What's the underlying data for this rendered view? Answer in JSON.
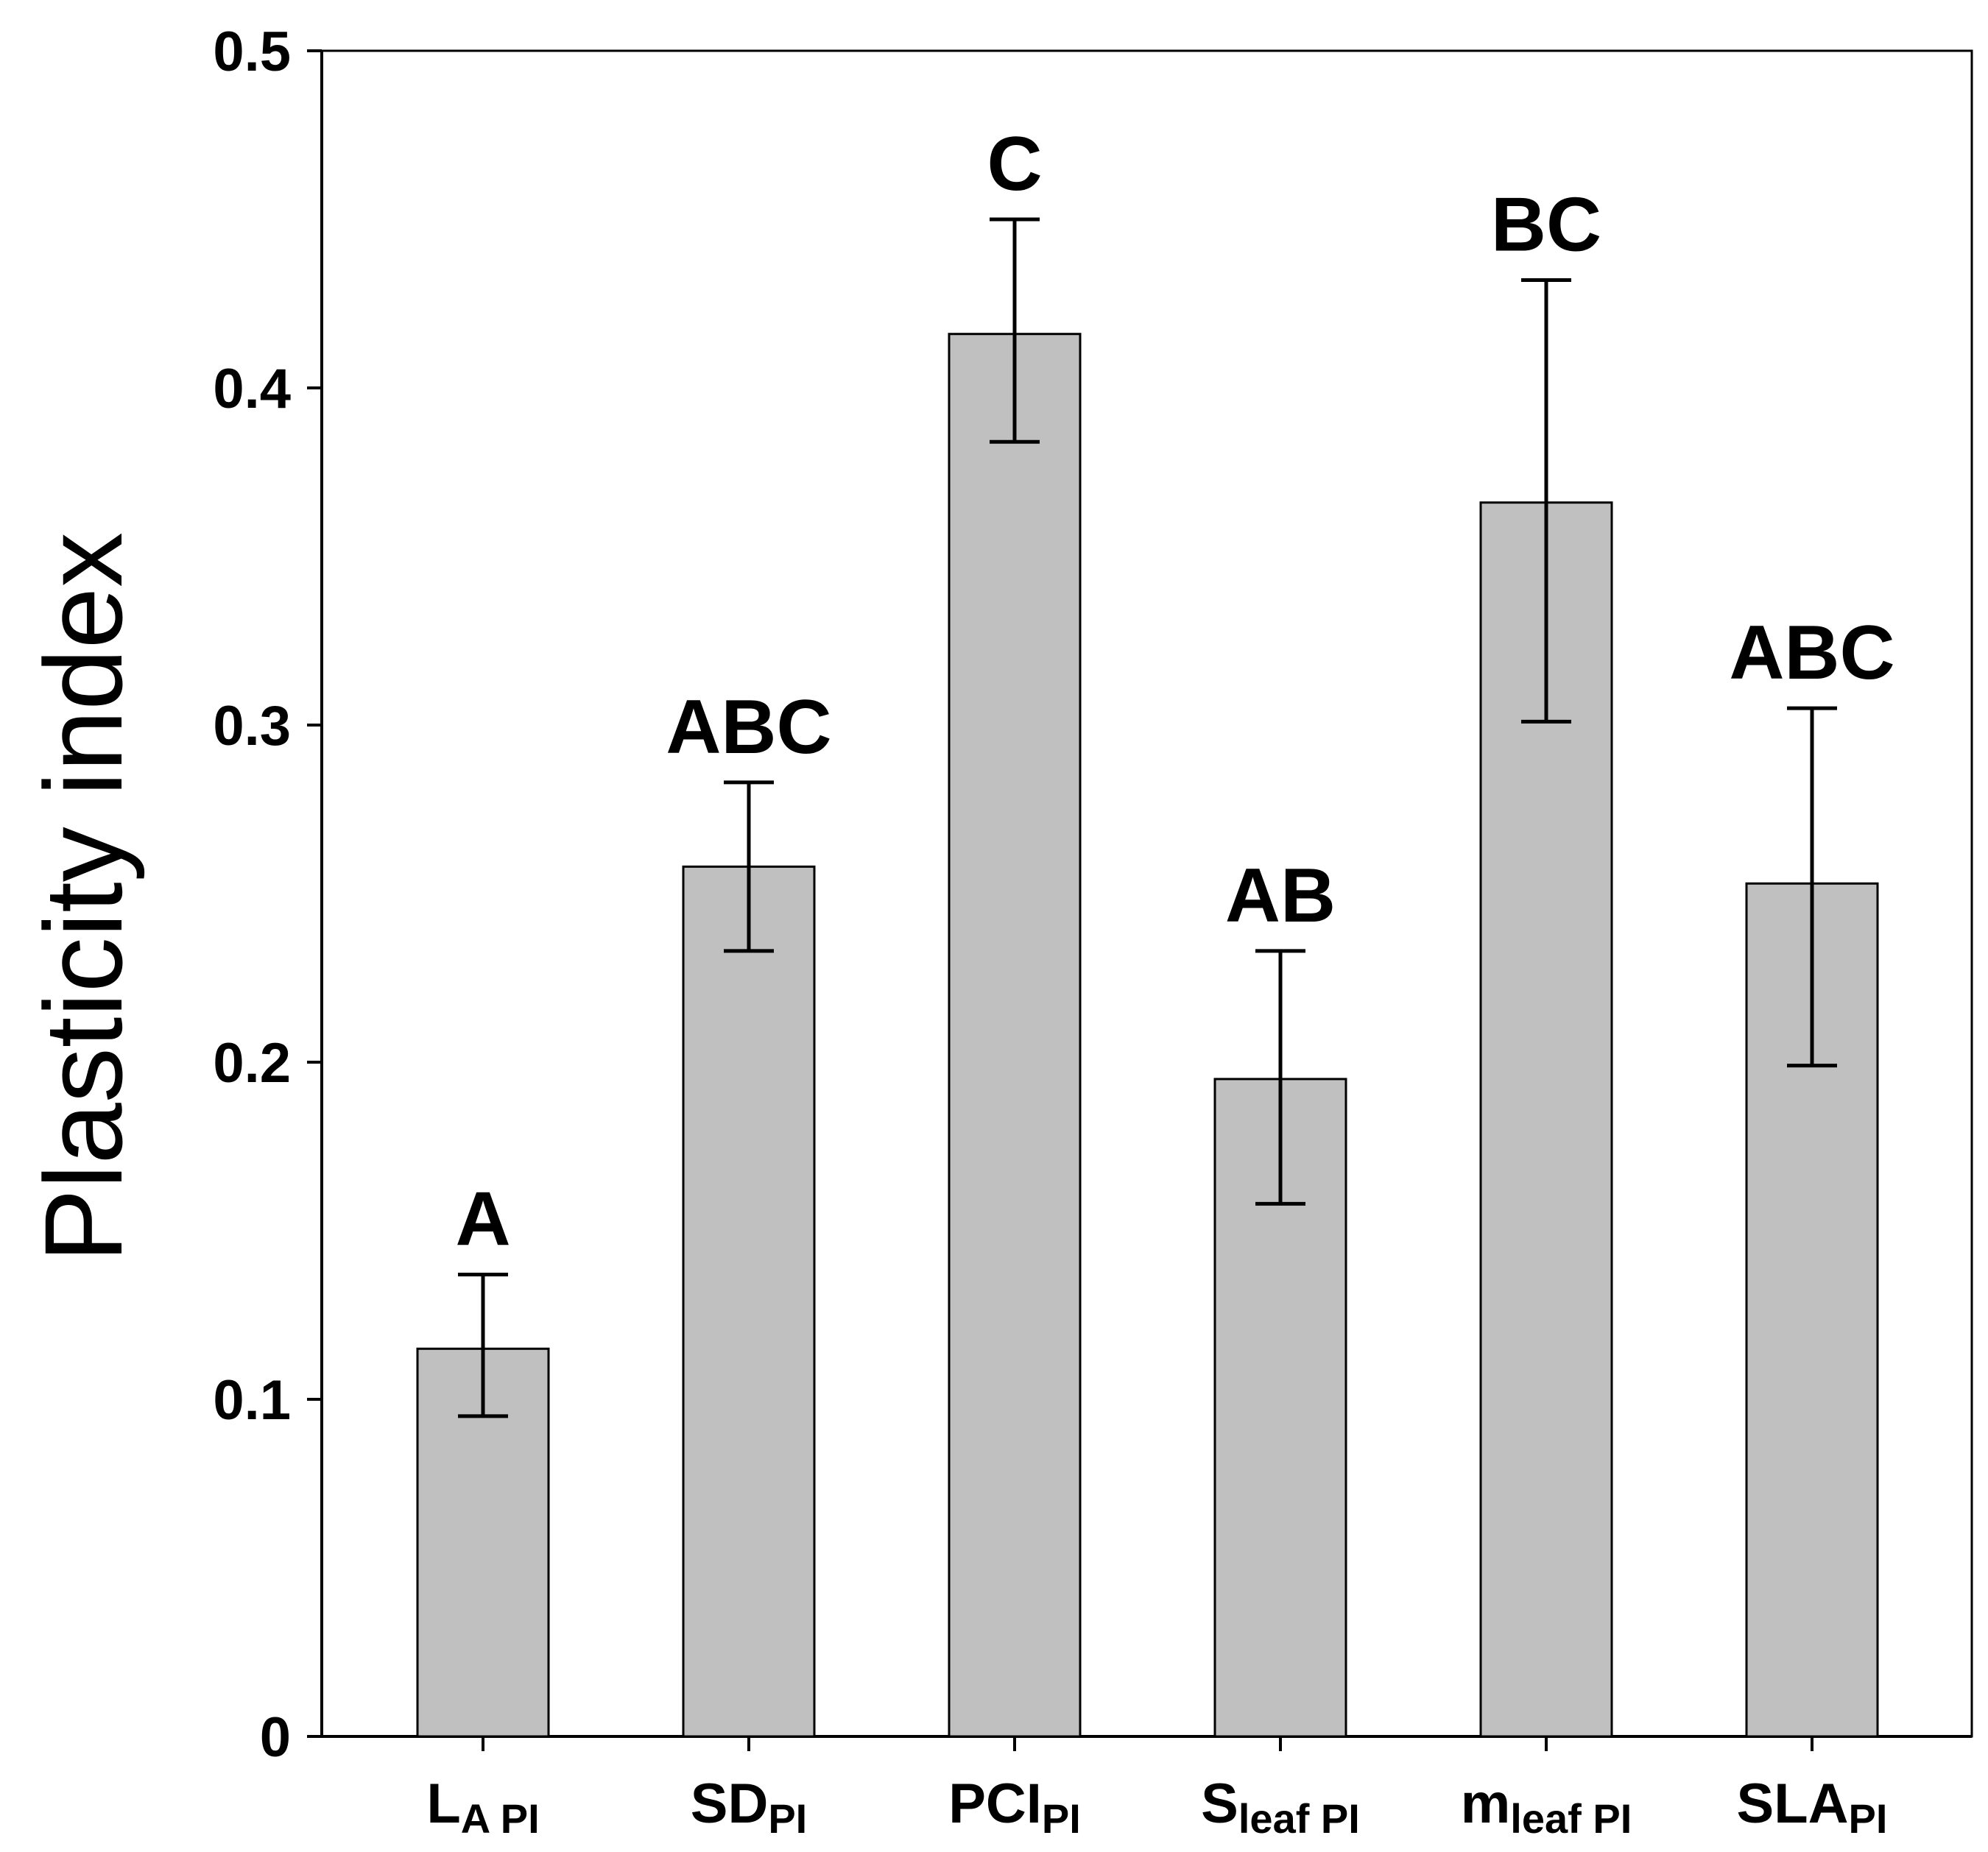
{
  "chart_data": {
    "type": "bar",
    "title": "",
    "xlabel": "",
    "ylabel": "Plasticity index",
    "ylim": [
      0,
      0.5
    ],
    "yticks": [
      0,
      0.1,
      0.2,
      0.3,
      0.4,
      0.5
    ],
    "ytick_labels": [
      "0",
      "0.1",
      "0.2",
      "0.3",
      "0.4",
      "0.5"
    ],
    "grid": false,
    "categories": [
      {
        "main": "L",
        "sub": "A PI"
      },
      {
        "main": "SD",
        "sub": "PI"
      },
      {
        "main": "PCI",
        "sub": "PI"
      },
      {
        "main": "S",
        "sub": "leaf PI"
      },
      {
        "main": "m",
        "sub": "leaf PI"
      },
      {
        "main": "SLA",
        "sub": "PI"
      }
    ],
    "values": [
      0.115,
      0.258,
      0.416,
      0.195,
      0.366,
      0.253
    ],
    "error_low": [
      0.095,
      0.233,
      0.384,
      0.158,
      0.301,
      0.199
    ],
    "error_high": [
      0.137,
      0.283,
      0.45,
      0.233,
      0.432,
      0.305
    ],
    "significance_labels": [
      "A",
      "ABC",
      "C",
      "AB",
      "BC",
      "ABC"
    ],
    "colors": {
      "bar_fill": "#c0c0c0",
      "bar_stroke": "#000000",
      "axis": "#000000",
      "frame": "#000000"
    }
  }
}
